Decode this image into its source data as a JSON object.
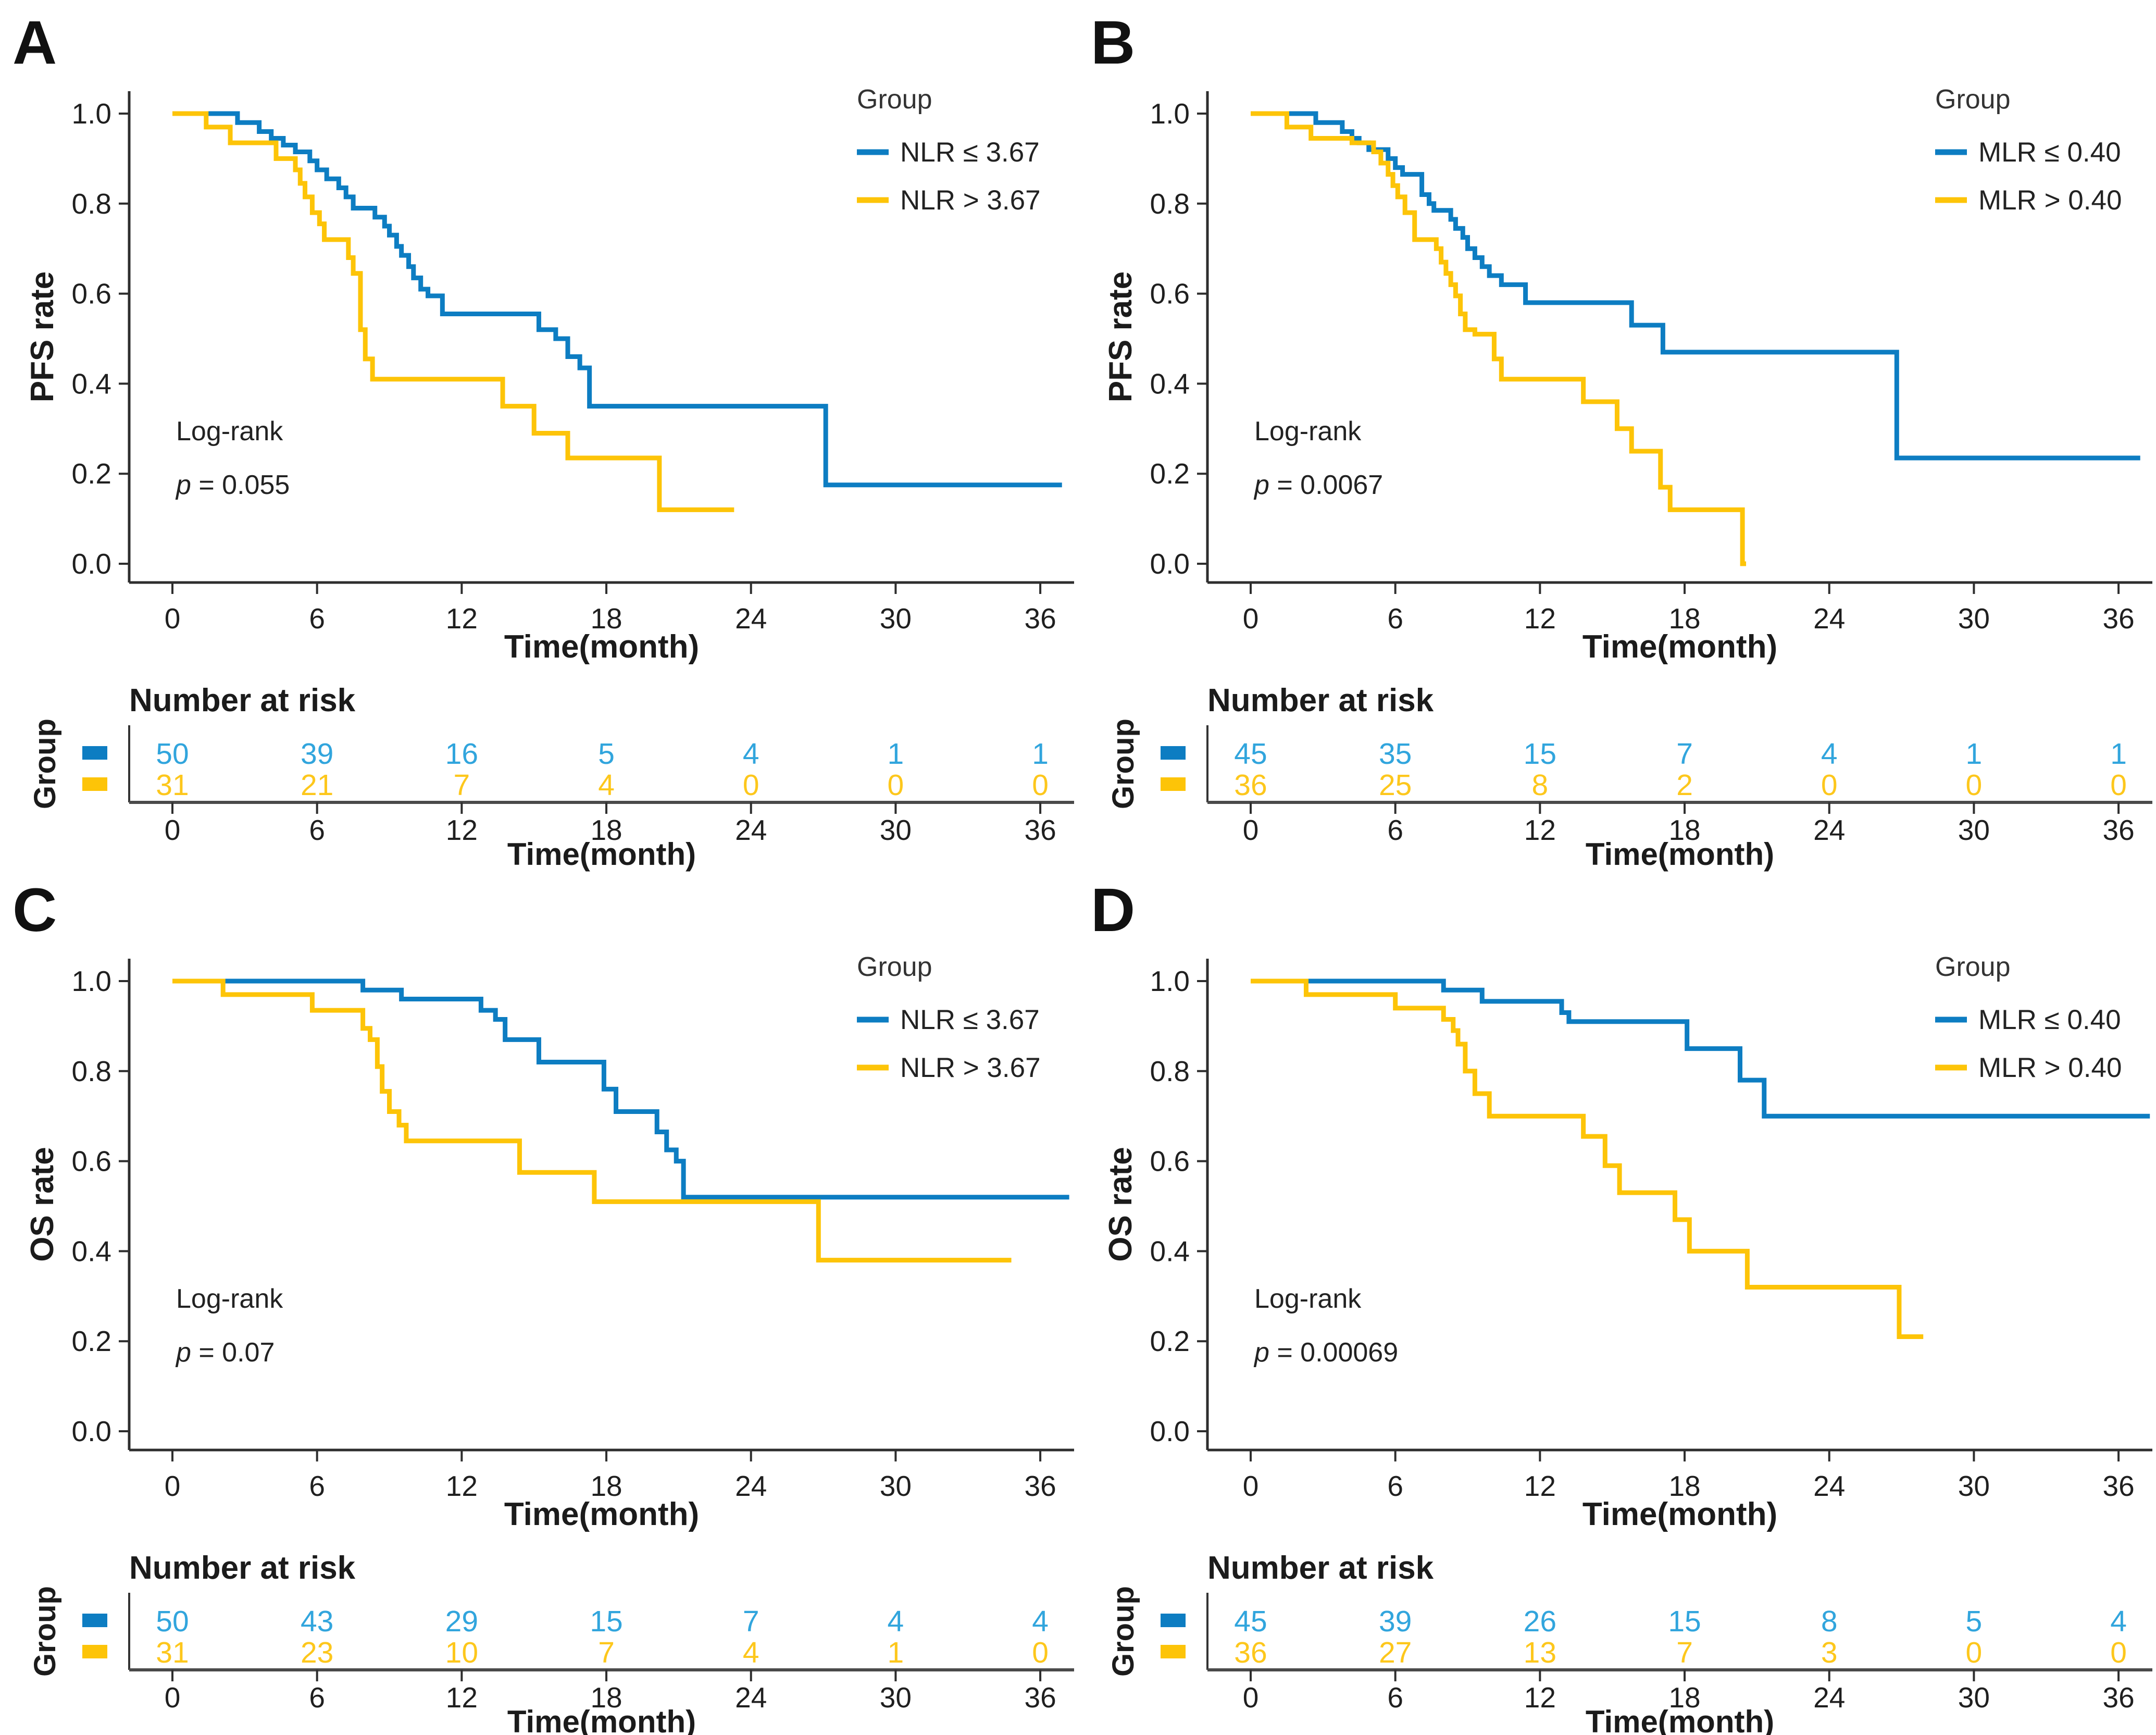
{
  "shared": {
    "x_label": "Time(month)",
    "x_ticks": [
      "0",
      "6",
      "12",
      "18",
      "24",
      "30",
      "36"
    ],
    "x_tick_values": [
      0,
      6,
      12,
      18,
      24,
      30,
      36
    ],
    "y_ticks": [
      "1.0",
      "0.8",
      "0.6",
      "0.4",
      "0.2",
      "0.0"
    ],
    "y_tick_values": [
      1.0,
      0.8,
      0.6,
      0.4,
      0.2,
      0.0
    ],
    "legend_title": "Group",
    "risk_header": "Number at risk",
    "risk_group_label": "Group",
    "logrank_label": "Log-rank",
    "colors": {
      "blue": "#0d7dc2",
      "yellow": "#fdc408",
      "risk_blue": "#31a5dd",
      "risk_yellow": "#fdc71c",
      "text": "#1b1b1b",
      "axis": "#2e2e2e",
      "risk_axis": "#4a4a4a"
    }
  },
  "chart_data": [
    {
      "type": "line",
      "subtype": "kaplan-meier-step",
      "letter": "A",
      "ylabel": "PFS rate",
      "xlabel": "Time(month)",
      "xlim": [
        0,
        37.5
      ],
      "ylim": [
        0.0,
        1.0
      ],
      "grid": false,
      "legend_position": "top-right",
      "legend": {
        "title": "Group",
        "entries": [
          {
            "label": "NLR ≤ 3.67",
            "color_key": "blue"
          },
          {
            "label": "NLR > 3.67",
            "color_key": "yellow"
          }
        ]
      },
      "logrank": {
        "label": "Log-rank",
        "p_prefix": "p",
        "p_text": " = 0.055"
      },
      "series": [
        {
          "name": "NLR ≤ 3.67",
          "color_key": "blue",
          "end": 36.9,
          "steps": [
            [
              0,
              1.0
            ],
            [
              2.7,
              0.98
            ],
            [
              3.6,
              0.96
            ],
            [
              4.1,
              0.945
            ],
            [
              4.6,
              0.93
            ],
            [
              5.1,
              0.915
            ],
            [
              5.7,
              0.895
            ],
            [
              6.0,
              0.875
            ],
            [
              6.4,
              0.855
            ],
            [
              6.9,
              0.835
            ],
            [
              7.2,
              0.815
            ],
            [
              7.5,
              0.79
            ],
            [
              8.4,
              0.77
            ],
            [
              8.8,
              0.75
            ],
            [
              9.0,
              0.73
            ],
            [
              9.3,
              0.705
            ],
            [
              9.5,
              0.685
            ],
            [
              9.8,
              0.66
            ],
            [
              10.0,
              0.635
            ],
            [
              10.3,
              0.61
            ],
            [
              10.6,
              0.595
            ],
            [
              11.2,
              0.555
            ],
            [
              15.2,
              0.52
            ],
            [
              15.9,
              0.5
            ],
            [
              16.4,
              0.46
            ],
            [
              16.9,
              0.435
            ],
            [
              17.3,
              0.35
            ],
            [
              27.1,
              0.175
            ]
          ]
        },
        {
          "name": "NLR > 3.67",
          "color_key": "yellow",
          "end": 23.3,
          "steps": [
            [
              0,
              1.0
            ],
            [
              1.4,
              0.97
            ],
            [
              2.4,
              0.935
            ],
            [
              4.3,
              0.9
            ],
            [
              5.1,
              0.875
            ],
            [
              5.3,
              0.845
            ],
            [
              5.5,
              0.815
            ],
            [
              5.8,
              0.78
            ],
            [
              6.1,
              0.755
            ],
            [
              6.3,
              0.72
            ],
            [
              7.3,
              0.68
            ],
            [
              7.5,
              0.645
            ],
            [
              7.8,
              0.52
            ],
            [
              8.0,
              0.455
            ],
            [
              8.3,
              0.41
            ],
            [
              13.7,
              0.35
            ],
            [
              15.0,
              0.29
            ],
            [
              16.4,
              0.235
            ],
            [
              20.2,
              0.12
            ]
          ]
        }
      ],
      "number_at_risk": {
        "times": [
          0,
          6,
          12,
          18,
          24,
          30,
          36
        ],
        "rows": [
          {
            "name": "NLR ≤ 3.67",
            "color_key": "blue",
            "counts": [
              "50",
              "39",
              "16",
              "5",
              "4",
              "1",
              "1"
            ]
          },
          {
            "name": "NLR > 3.67",
            "color_key": "yellow",
            "counts": [
              "31",
              "21",
              "7",
              "4",
              "0",
              "0",
              "0"
            ]
          }
        ]
      }
    },
    {
      "type": "line",
      "subtype": "kaplan-meier-step",
      "letter": "B",
      "ylabel": "PFS rate",
      "xlabel": "Time(month)",
      "xlim": [
        0,
        37.5
      ],
      "ylim": [
        0.0,
        1.0
      ],
      "grid": false,
      "legend_position": "top-right",
      "legend": {
        "title": "Group",
        "entries": [
          {
            "label": "MLR ≤ 0.40",
            "color_key": "blue"
          },
          {
            "label": "MLR > 0.40",
            "color_key": "yellow"
          }
        ]
      },
      "logrank": {
        "label": "Log-rank",
        "p_prefix": "p",
        "p_text": " = 0.0067"
      },
      "series": [
        {
          "name": "MLR ≤ 0.40",
          "color_key": "blue",
          "end": 36.9,
          "steps": [
            [
              0,
              1.0
            ],
            [
              2.7,
              0.98
            ],
            [
              3.8,
              0.96
            ],
            [
              4.2,
              0.945
            ],
            [
              4.5,
              0.935
            ],
            [
              4.9,
              0.92
            ],
            [
              5.7,
              0.9
            ],
            [
              6.0,
              0.88
            ],
            [
              6.3,
              0.865
            ],
            [
              7.1,
              0.82
            ],
            [
              7.4,
              0.8
            ],
            [
              7.6,
              0.785
            ],
            [
              8.3,
              0.765
            ],
            [
              8.5,
              0.745
            ],
            [
              8.8,
              0.725
            ],
            [
              9.0,
              0.7
            ],
            [
              9.3,
              0.68
            ],
            [
              9.6,
              0.66
            ],
            [
              9.9,
              0.64
            ],
            [
              10.4,
              0.62
            ],
            [
              11.4,
              0.58
            ],
            [
              15.8,
              0.53
            ],
            [
              17.1,
              0.47
            ],
            [
              26.8,
              0.235
            ]
          ]
        },
        {
          "name": "MLR > 0.40",
          "color_key": "yellow",
          "end": 20.55,
          "steps": [
            [
              0,
              1.0
            ],
            [
              1.5,
              0.97
            ],
            [
              2.5,
              0.945
            ],
            [
              4.2,
              0.935
            ],
            [
              5.1,
              0.915
            ],
            [
              5.4,
              0.89
            ],
            [
              5.7,
              0.865
            ],
            [
              5.9,
              0.84
            ],
            [
              6.1,
              0.815
            ],
            [
              6.4,
              0.78
            ],
            [
              6.8,
              0.72
            ],
            [
              7.7,
              0.7
            ],
            [
              7.9,
              0.67
            ],
            [
              8.1,
              0.645
            ],
            [
              8.3,
              0.62
            ],
            [
              8.5,
              0.595
            ],
            [
              8.7,
              0.555
            ],
            [
              8.9,
              0.52
            ],
            [
              9.3,
              0.51
            ],
            [
              10.1,
              0.455
            ],
            [
              10.4,
              0.41
            ],
            [
              13.8,
              0.36
            ],
            [
              15.2,
              0.3
            ],
            [
              15.8,
              0.25
            ],
            [
              17.0,
              0.17
            ],
            [
              17.4,
              0.12
            ],
            [
              20.4,
              0.0
            ]
          ]
        }
      ],
      "number_at_risk": {
        "times": [
          0,
          6,
          12,
          18,
          24,
          30,
          36
        ],
        "rows": [
          {
            "name": "MLR ≤ 0.40",
            "color_key": "blue",
            "counts": [
              "45",
              "35",
              "15",
              "7",
              "4",
              "1",
              "1"
            ]
          },
          {
            "name": "MLR > 0.40",
            "color_key": "yellow",
            "counts": [
              "36",
              "25",
              "8",
              "2",
              "0",
              "0",
              "0"
            ]
          }
        ]
      }
    },
    {
      "type": "line",
      "subtype": "kaplan-meier-step",
      "letter": "C",
      "ylabel": "OS rate",
      "xlabel": "Time(month)",
      "xlim": [
        0,
        37.5
      ],
      "ylim": [
        0.0,
        1.0
      ],
      "grid": false,
      "legend_position": "top-right",
      "legend": {
        "title": "Group",
        "entries": [
          {
            "label": "NLR ≤ 3.67",
            "color_key": "blue"
          },
          {
            "label": "NLR > 3.67",
            "color_key": "yellow"
          }
        ]
      },
      "logrank": {
        "label": "Log-rank",
        "p_prefix": "p",
        "p_text": " = 0.07"
      },
      "series": [
        {
          "name": "NLR ≤ 3.67",
          "color_key": "blue",
          "end": 37.2,
          "steps": [
            [
              0,
              1.0
            ],
            [
              7.9,
              0.98
            ],
            [
              9.5,
              0.96
            ],
            [
              12.8,
              0.935
            ],
            [
              13.4,
              0.915
            ],
            [
              13.8,
              0.87
            ],
            [
              15.2,
              0.82
            ],
            [
              17.9,
              0.76
            ],
            [
              18.4,
              0.71
            ],
            [
              20.1,
              0.665
            ],
            [
              20.5,
              0.625
            ],
            [
              20.9,
              0.6
            ],
            [
              21.2,
              0.52
            ]
          ]
        },
        {
          "name": "NLR > 3.67",
          "color_key": "yellow",
          "end": 34.8,
          "steps": [
            [
              0,
              1.0
            ],
            [
              2.1,
              0.97
            ],
            [
              5.8,
              0.935
            ],
            [
              7.9,
              0.895
            ],
            [
              8.2,
              0.87
            ],
            [
              8.5,
              0.81
            ],
            [
              8.7,
              0.755
            ],
            [
              9.0,
              0.71
            ],
            [
              9.4,
              0.68
            ],
            [
              9.7,
              0.645
            ],
            [
              14.4,
              0.575
            ],
            [
              17.5,
              0.51
            ],
            [
              26.8,
              0.38
            ]
          ]
        }
      ],
      "number_at_risk": {
        "times": [
          0,
          6,
          12,
          18,
          24,
          30,
          36
        ],
        "rows": [
          {
            "name": "NLR ≤ 3.67",
            "color_key": "blue",
            "counts": [
              "50",
              "43",
              "29",
              "15",
              "7",
              "4",
              "4"
            ]
          },
          {
            "name": "NLR > 3.67",
            "color_key": "yellow",
            "counts": [
              "31",
              "23",
              "10",
              "7",
              "4",
              "1",
              "0"
            ]
          }
        ]
      }
    },
    {
      "type": "line",
      "subtype": "kaplan-meier-step",
      "letter": "D",
      "ylabel": "OS rate",
      "xlabel": "Time(month)",
      "xlim": [
        0,
        37.5
      ],
      "ylim": [
        0.0,
        1.0
      ],
      "grid": false,
      "legend_position": "top-right",
      "legend": {
        "title": "Group",
        "entries": [
          {
            "label": "MLR ≤ 0.40",
            "color_key": "blue"
          },
          {
            "label": "MLR > 0.40",
            "color_key": "yellow"
          }
        ]
      },
      "logrank": {
        "label": "Log-rank",
        "p_prefix": "p",
        "p_text": " = 0.00069"
      },
      "series": [
        {
          "name": "MLR ≤ 0.40",
          "color_key": "blue",
          "end": 37.3,
          "steps": [
            [
              0,
              1.0
            ],
            [
              8.0,
              0.98
            ],
            [
              9.6,
              0.955
            ],
            [
              12.9,
              0.93
            ],
            [
              13.2,
              0.91
            ],
            [
              18.1,
              0.85
            ],
            [
              20.3,
              0.78
            ],
            [
              21.3,
              0.7
            ]
          ]
        },
        {
          "name": "MLR > 0.40",
          "color_key": "yellow",
          "end": 27.9,
          "steps": [
            [
              0,
              1.0
            ],
            [
              2.3,
              0.97
            ],
            [
              6.0,
              0.94
            ],
            [
              8.0,
              0.915
            ],
            [
              8.4,
              0.89
            ],
            [
              8.6,
              0.86
            ],
            [
              8.9,
              0.8
            ],
            [
              9.3,
              0.75
            ],
            [
              9.9,
              0.7
            ],
            [
              13.8,
              0.655
            ],
            [
              14.7,
              0.59
            ],
            [
              15.3,
              0.53
            ],
            [
              17.6,
              0.47
            ],
            [
              18.2,
              0.4
            ],
            [
              20.6,
              0.32
            ],
            [
              26.9,
              0.21
            ]
          ]
        }
      ],
      "number_at_risk": {
        "times": [
          0,
          6,
          12,
          18,
          24,
          30,
          36
        ],
        "rows": [
          {
            "name": "MLR ≤ 0.40",
            "color_key": "blue",
            "counts": [
              "45",
              "39",
              "26",
              "15",
              "8",
              "5",
              "4"
            ]
          },
          {
            "name": "MLR > 0.40",
            "color_key": "yellow",
            "counts": [
              "36",
              "27",
              "13",
              "7",
              "3",
              "0",
              "0"
            ]
          }
        ]
      }
    }
  ]
}
